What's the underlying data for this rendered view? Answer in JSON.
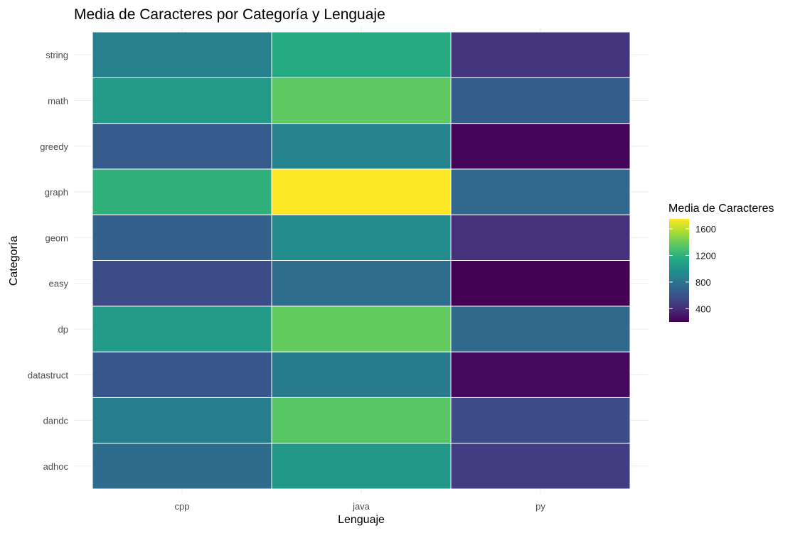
{
  "chart_data": {
    "type": "heatmap",
    "title": "Media de Caracteres por Categoría y Lenguaje",
    "xlabel": "Lenguaje",
    "ylabel": "Categoría",
    "x_categories": [
      "cpp",
      "java",
      "py"
    ],
    "y_categories": [
      "adhoc",
      "dandc",
      "datastruct",
      "dp",
      "easy",
      "geom",
      "graph",
      "greedy",
      "math",
      "string"
    ],
    "values": [
      {
        "y": "adhoc",
        "cpp": 750,
        "java": 1030,
        "py": 480
      },
      {
        "y": "dandc",
        "cpp": 870,
        "java": 1350,
        "py": 560
      },
      {
        "y": "datastruct",
        "cpp": 620,
        "java": 850,
        "py": 240
      },
      {
        "y": "dp",
        "cpp": 1050,
        "java": 1380,
        "py": 740
      },
      {
        "y": "easy",
        "cpp": 560,
        "java": 760,
        "py": 200
      },
      {
        "y": "geom",
        "cpp": 680,
        "java": 950,
        "py": 420
      },
      {
        "y": "graph",
        "cpp": 1200,
        "java": 1750,
        "py": 730
      },
      {
        "y": "greedy",
        "cpp": 640,
        "java": 900,
        "py": 220
      },
      {
        "y": "math",
        "cpp": 1050,
        "java": 1370,
        "py": 660
      },
      {
        "y": "string",
        "cpp": 880,
        "java": 1150,
        "py": 440
      }
    ],
    "legend": {
      "title": "Media de Caracteres",
      "position": "right",
      "ticks": [
        "1600",
        "1200",
        "800",
        "400"
      ],
      "range": [
        200,
        1750
      ],
      "tick_values": [
        1600,
        1200,
        800,
        400
      ]
    },
    "colormap": "viridis",
    "palette": [
      "#440154",
      "#472c7a",
      "#3b518b",
      "#2c718e",
      "#21908d",
      "#27ad81",
      "#5cc863",
      "#aadc32",
      "#fde725"
    ],
    "grid": true
  }
}
